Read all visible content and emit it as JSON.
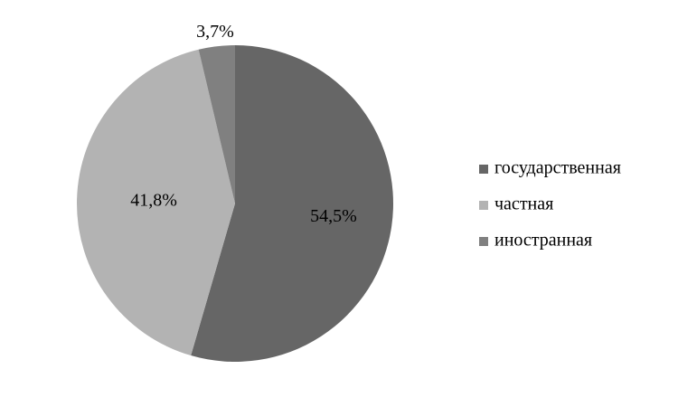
{
  "chart_data": {
    "type": "pie",
    "categories": [
      "государственная",
      "частная",
      "иностранная"
    ],
    "values": [
      54.5,
      41.8,
      3.7
    ],
    "value_labels": [
      "54,5%",
      "41,8%",
      "3,7%"
    ],
    "colors": [
      "#666666",
      "#b3b3b3",
      "#808080"
    ],
    "legend": "right"
  }
}
